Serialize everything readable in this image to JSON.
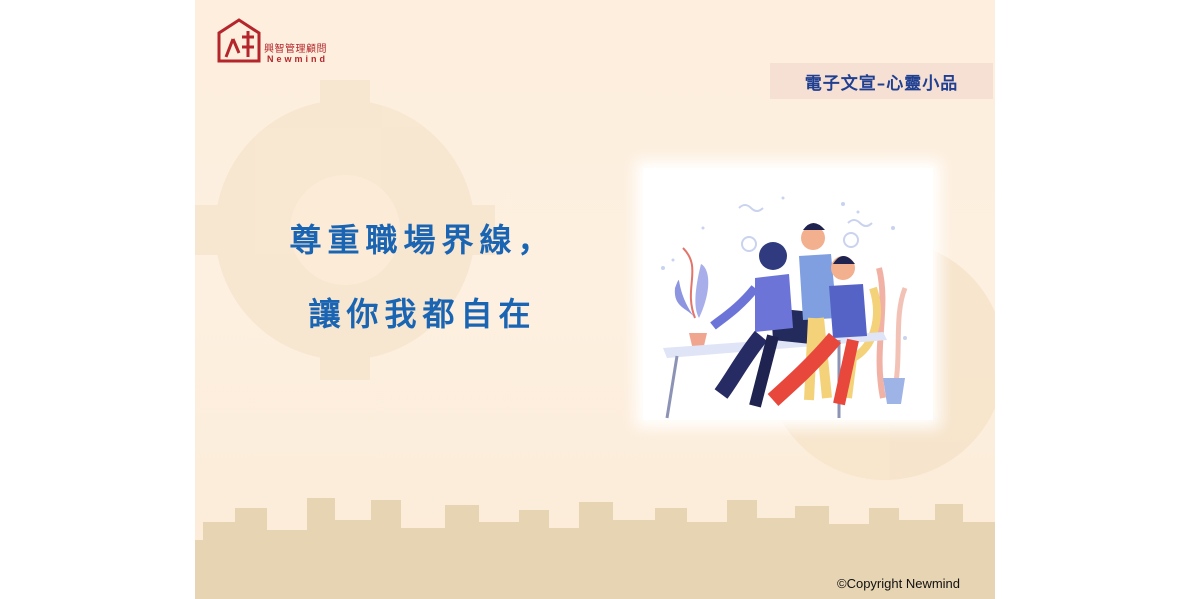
{
  "logo": {
    "chinese": "興智管理顧問",
    "english": "Newmind",
    "brand_color": "#b5262c"
  },
  "tag": {
    "label": "電子文宣–心靈小品"
  },
  "headline": {
    "line1": "尊重職場界線，",
    "line2": "讓你我都自在",
    "color": "#1a65b3"
  },
  "illustration": {
    "subject": "office-team-working-at-desk"
  },
  "footer": {
    "copyright": "©Copyright Newmind"
  },
  "colors": {
    "background": "#fdeedd",
    "skyline": "#e6d4b2",
    "tag_background": "#f6dfd3",
    "tag_text": "#1f3f91"
  }
}
